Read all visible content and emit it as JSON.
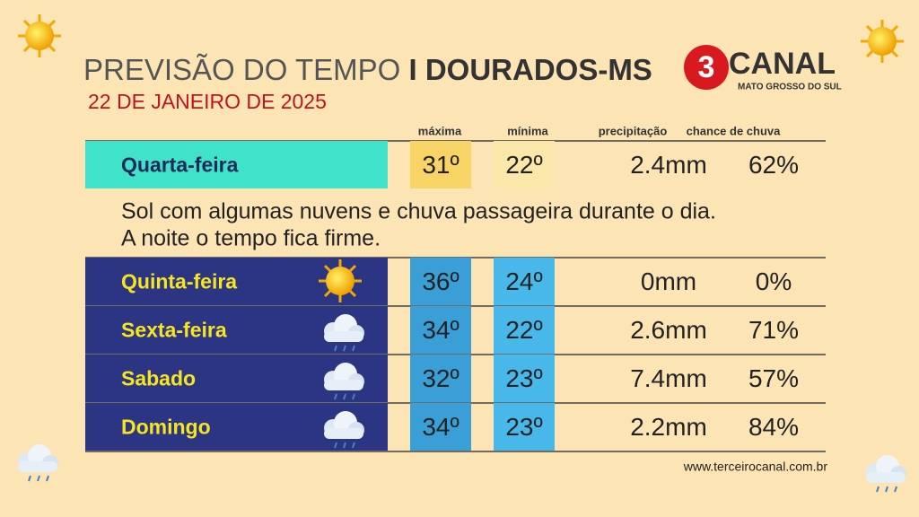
{
  "header": {
    "title": "PREVISÃO DO TEMPO",
    "location": "I DOURADOS-MS",
    "date": "22 DE JANEIRO DE 2025"
  },
  "logo": {
    "number": "3",
    "name": "CANAL",
    "region": "MATO GROSSO DO SUL"
  },
  "table": {
    "columns": [
      "máxima",
      "mínima",
      "precipitação",
      "chance de chuva"
    ],
    "today": [
      "Quarta-feira",
      "31º",
      "22º",
      "2.4mm",
      "62%"
    ],
    "description": [
      "Sol com algumas nuvens e chuva passageira durante o dia.",
      "A noite o tempo fica firme."
    ],
    "rows": [
      [
        "Quinta-feira",
        "36º",
        "24º",
        "0mm",
        "0%"
      ],
      [
        "Sexta-feira",
        "34º",
        "22º",
        "2.6mm",
        "71%"
      ],
      [
        "Sabado",
        "32º",
        "23º",
        "7.4mm",
        "57%"
      ],
      [
        "Domingo",
        "34º",
        "23º",
        "2.2mm",
        "84%"
      ]
    ]
  },
  "footer": {
    "website": "www.terceirocanal.com.br"
  }
}
